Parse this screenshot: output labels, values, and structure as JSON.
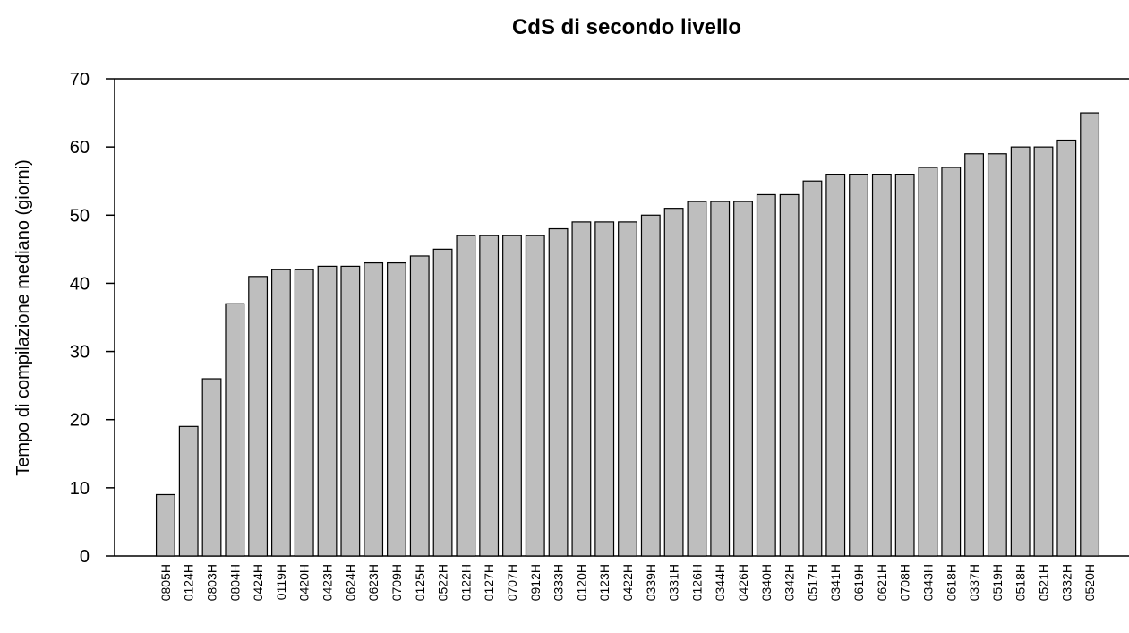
{
  "chart_data": {
    "type": "bar",
    "title": "CdS di secondo livello",
    "y_label": "Tempo di compilazione mediano (giorni)",
    "categories": [
      "0805H",
      "0124H",
      "0803H",
      "0804H",
      "0424H",
      "0119H",
      "0420H",
      "0423H",
      "0624H",
      "0623H",
      "0709H",
      "0125H",
      "0522H",
      "0122H",
      "0127H",
      "0707H",
      "0912H",
      "0333H",
      "0120H",
      "0123H",
      "0422H",
      "0339H",
      "0331H",
      "0126H",
      "0344H",
      "0426H",
      "0340H",
      "0342H",
      "0517H",
      "0341H",
      "0619H",
      "0621H",
      "0708H",
      "0343H",
      "0618H",
      "0337H",
      "0519H",
      "0518H",
      "0521H",
      "0332H",
      "0520H"
    ],
    "values": [
      9,
      19,
      26,
      37,
      41,
      42,
      42,
      42.5,
      42.5,
      43,
      43,
      44,
      45,
      47,
      47,
      47,
      47,
      48,
      49,
      49,
      49,
      50,
      51,
      52,
      52,
      52,
      53,
      53,
      55,
      56,
      56,
      56,
      56,
      57,
      57,
      59,
      59,
      60,
      60,
      61,
      65
    ],
    "color": "#bebebe",
    "ylim": [
      0,
      70
    ],
    "yticks": [
      0,
      10,
      20,
      30,
      40,
      50,
      60,
      70
    ]
  }
}
